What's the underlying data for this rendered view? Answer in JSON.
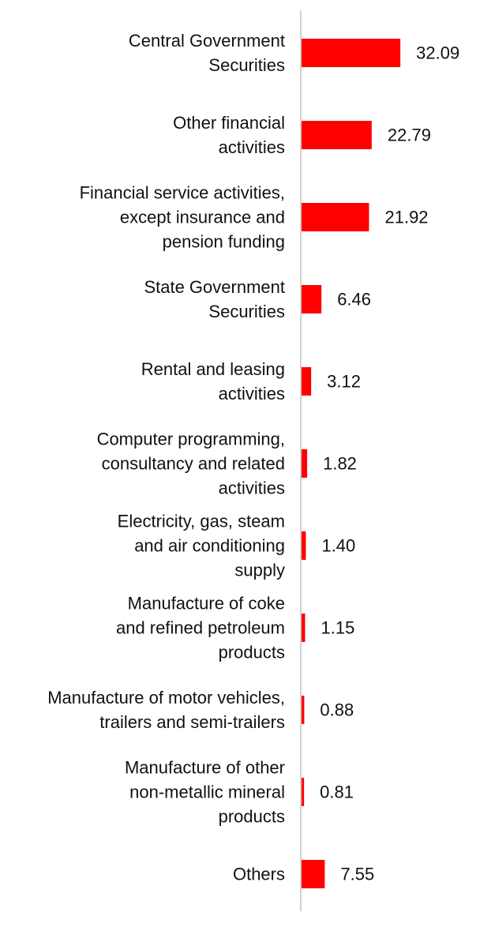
{
  "chart_data": {
    "type": "bar",
    "orientation": "horizontal",
    "categories": [
      [
        "Central Government",
        "Securities"
      ],
      [
        "Other financial",
        "activities"
      ],
      [
        "Financial service activities,",
        "except insurance and",
        "pension funding"
      ],
      [
        "State Government",
        "Securities"
      ],
      [
        "Rental and leasing",
        "activities"
      ],
      [
        "Computer programming,",
        "consultancy and related",
        "activities"
      ],
      [
        "Electricity, gas, steam",
        "and air conditioning",
        "supply"
      ],
      [
        "Manufacture of coke",
        "and refined petroleum",
        "products"
      ],
      [
        "Manufacture of motor vehicles,",
        "trailers and semi-trailers"
      ],
      [
        "Manufacture of other",
        "non-metallic mineral",
        "products"
      ],
      [
        "Others"
      ]
    ],
    "values": [
      32.09,
      22.79,
      21.92,
      6.46,
      3.12,
      1.82,
      1.4,
      1.15,
      0.88,
      0.81,
      7.55
    ],
    "value_labels": [
      "32.09",
      "22.79",
      "21.92",
      "6.46",
      "3.12",
      "1.82",
      "1.40",
      "1.15",
      "0.88",
      "0.81",
      "7.55"
    ],
    "bar_color": "#ff0000",
    "grid": false,
    "legend": "none"
  }
}
